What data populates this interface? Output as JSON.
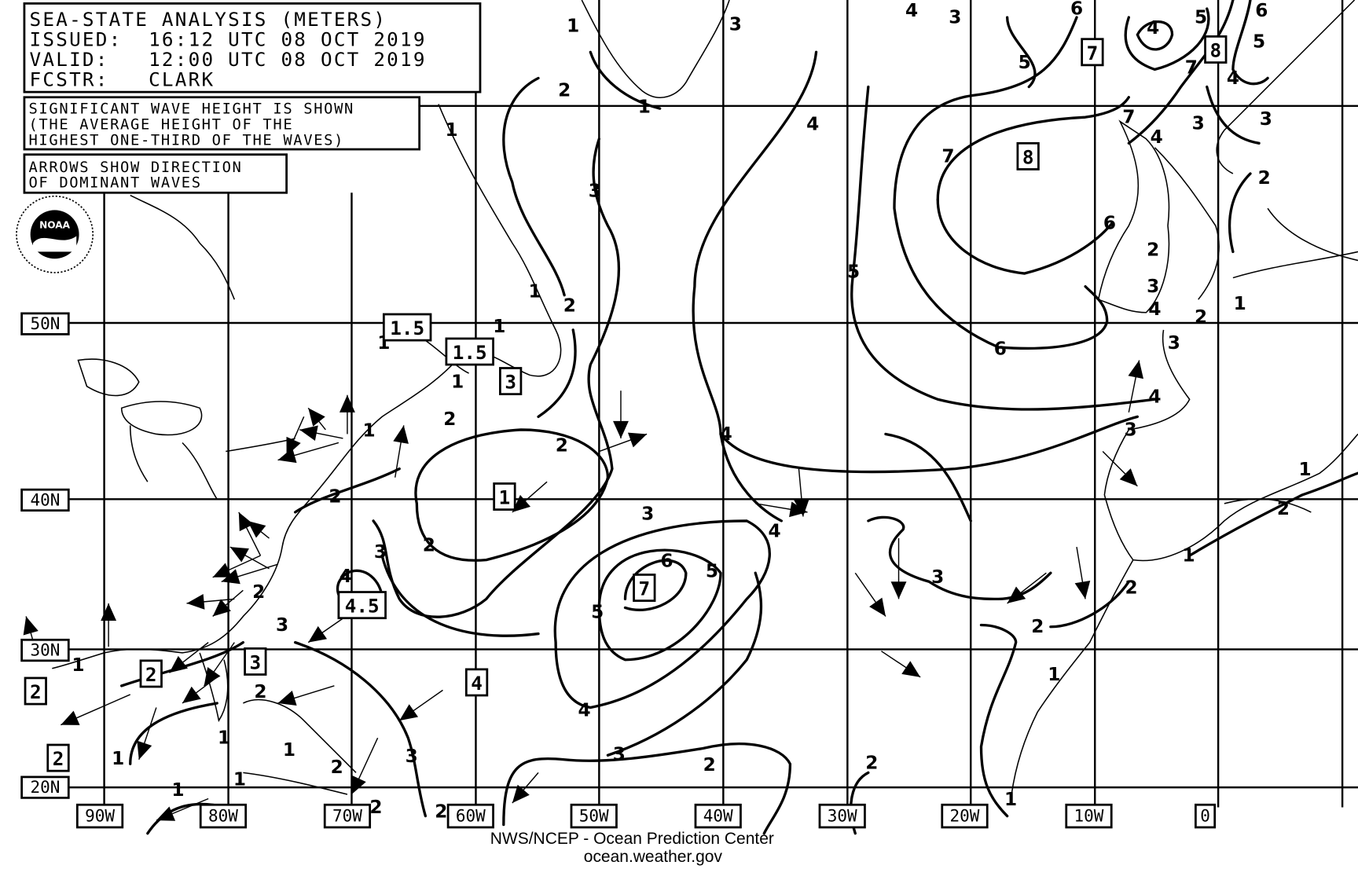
{
  "header": {
    "title": "SEA-STATE ANALYSIS (METERS)",
    "issued": "ISSUED:  16:12 UTC 08 OCT 2019",
    "valid": "VALID:   12:00 UTC 08 OCT 2019",
    "forecaster": "FCSTR:   CLARK"
  },
  "notes": {
    "wave_height": [
      "SIGNIFICANT WAVE HEIGHT IS SHOWN",
      "(THE AVERAGE HEIGHT OF THE",
      "HIGHEST ONE-THIRD OF THE WAVES)"
    ],
    "arrows": [
      "ARROWS SHOW DIRECTION",
      "OF DOMINANT WAVES"
    ]
  },
  "logo": {
    "name": "NOAA",
    "icon": "noaa-logo"
  },
  "latitude_labels": [
    "50N",
    "40N",
    "30N",
    "20N"
  ],
  "longitude_labels": [
    "90W",
    "80W",
    "70W",
    "60W",
    "50W",
    "40W",
    "30W",
    "20W",
    "10W",
    "0"
  ],
  "contour_labels": [
    "1",
    "3",
    "4",
    "3",
    "6",
    "5",
    "4",
    "5",
    "6",
    "5",
    "7",
    "4",
    "3",
    "3",
    "7",
    "4",
    "2",
    "2",
    "1",
    "4",
    "7",
    "3",
    "1",
    "6",
    "5",
    "2",
    "1",
    "2",
    "1",
    "1",
    "2",
    "3",
    "4",
    "6",
    "3",
    "1",
    "1",
    "2",
    "1",
    "4",
    "3",
    "4",
    "2",
    "2",
    "1",
    "2",
    "3",
    "2",
    "3",
    "4",
    "6",
    "5",
    "1",
    "4",
    "2",
    "3",
    "2",
    "5",
    "3",
    "2",
    "1",
    "1",
    "2",
    "4",
    "1",
    "3",
    "3",
    "2",
    "1",
    "1",
    "2",
    "2",
    "1",
    "1",
    "1",
    "2",
    "2"
  ],
  "boxed_values": [
    "1.5",
    "1.5",
    "3",
    "1",
    "4.5",
    "7",
    "3",
    "2",
    "4",
    "2",
    "2",
    "7",
    "8",
    "8"
  ],
  "footer": {
    "credit": "NWS/NCEP - Ocean Prediction Center",
    "url": "ocean.weather.gov"
  },
  "colors": {
    "ink": "#000000",
    "background": "#ffffff"
  }
}
